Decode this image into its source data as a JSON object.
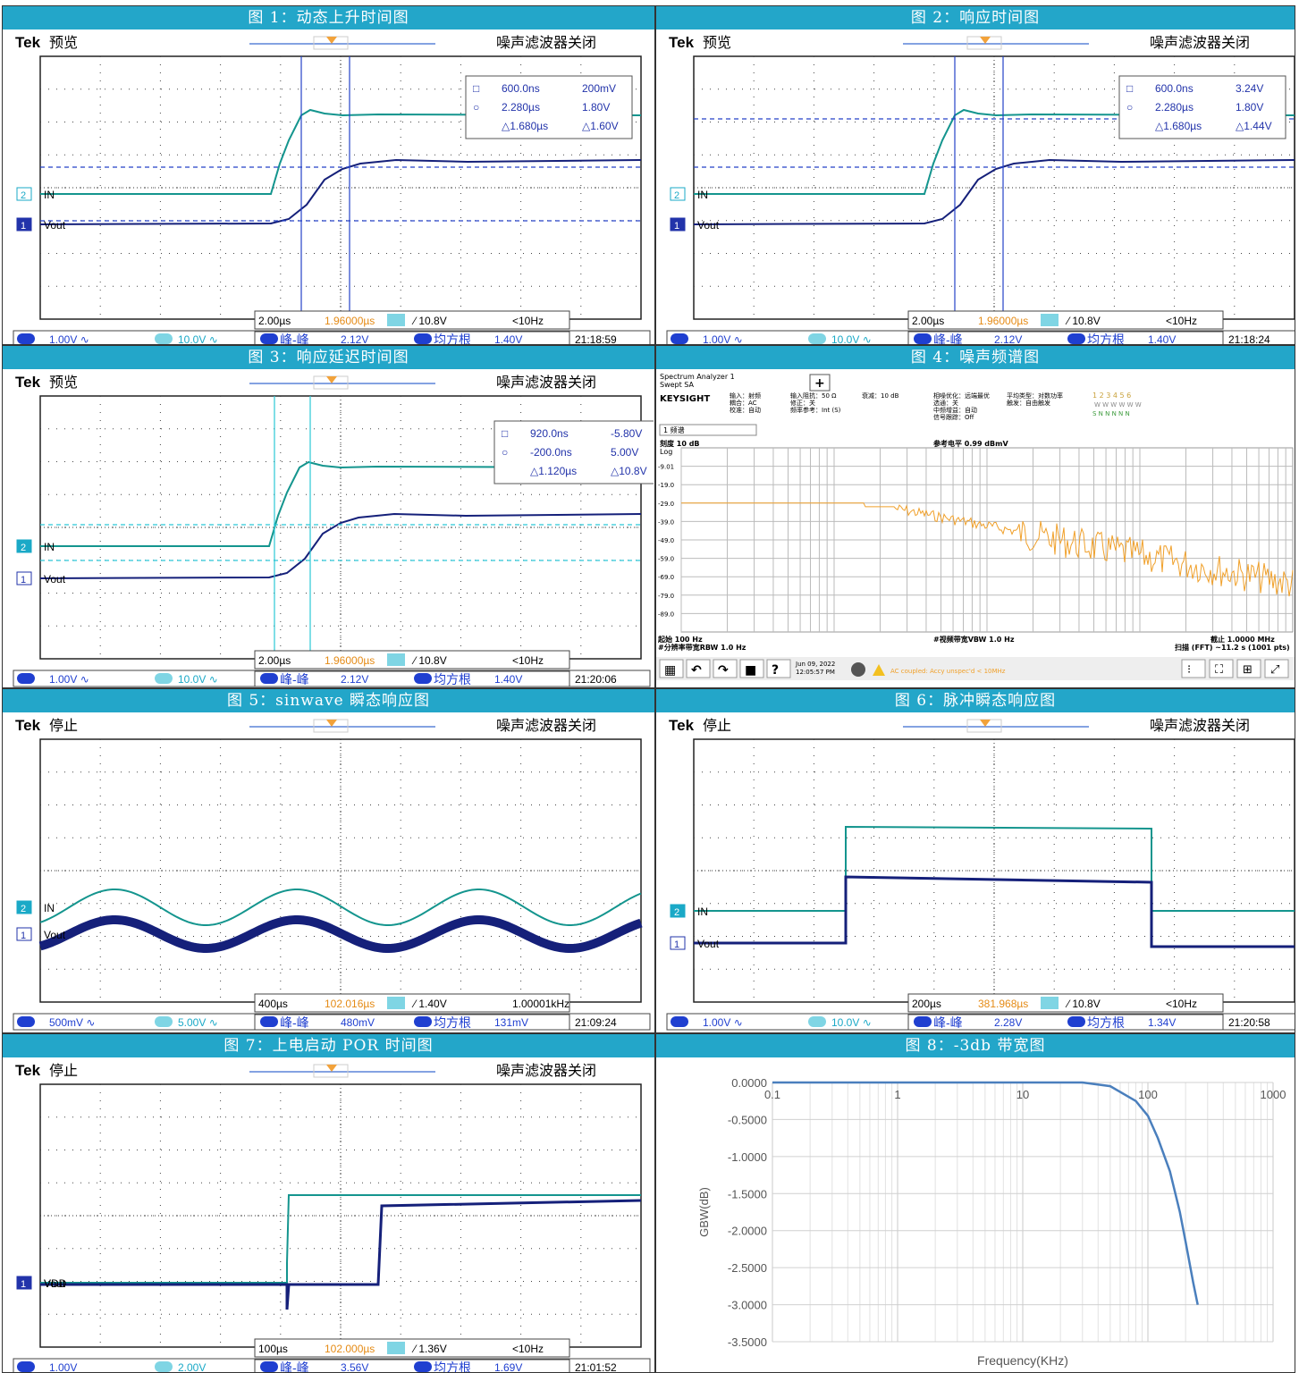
{
  "captions": [
    "图 1：动态上升时间图",
    "图 2：响应时间图",
    "图 3：响应延迟时间图",
    "图 4：噪声频谱图",
    "图 5：sinwave 瞬态响应图",
    "图 6：脉冲瞬态响应图",
    "图 7：上电启动 POR 时间图",
    "图 8：-3db 带宽图"
  ],
  "scopes": [
    {
      "brand": "Tek",
      "state": "预览",
      "filter": "噪声滤波器关闭",
      "ch2": "IN",
      "ch1": "Vout",
      "cursor": {
        "a": [
          "600.0ns",
          "200mV"
        ],
        "b": [
          "2.280µs",
          "1.80V"
        ],
        "d": [
          "△1.680µs",
          "△1.60V"
        ]
      },
      "status": {
        "tb": "2.00µs",
        "pos": "1.96000µs",
        "trig": "⁄ 10.8V",
        "freq": "<10Hz"
      },
      "bottom": {
        "ch1v": "1.00V ∿",
        "ch2v": "10.0V ∿",
        "m1": "峰-峰",
        "m1v": "2.12V",
        "m2": "均方根",
        "m2v": "1.40V",
        "time": "21:18:59"
      }
    },
    {
      "brand": "Tek",
      "state": "预览",
      "filter": "噪声滤波器关闭",
      "ch2": "IN",
      "ch1": "Vout",
      "cursor": {
        "a": [
          "600.0ns",
          "3.24V"
        ],
        "b": [
          "2.280µs",
          "1.80V"
        ],
        "d": [
          "△1.680µs",
          "△1.44V"
        ]
      },
      "status": {
        "tb": "2.00µs",
        "pos": "1.96000µs",
        "trig": "⁄ 10.8V",
        "freq": "<10Hz"
      },
      "bottom": {
        "ch1v": "1.00V ∿",
        "ch2v": "10.0V ∿",
        "m1": "峰-峰",
        "m1v": "2.12V",
        "m2": "均方根",
        "m2v": "1.40V",
        "time": "21:18:24"
      }
    },
    {
      "brand": "Tek",
      "state": "预览",
      "filter": "噪声滤波器关闭",
      "ch2": "IN",
      "ch1": "Vout",
      "cursor": {
        "a": [
          "920.0ns",
          "-5.80V"
        ],
        "b": [
          "-200.0ns",
          "5.00V"
        ],
        "d": [
          "△1.120µs",
          "△10.8V"
        ]
      },
      "status": {
        "tb": "2.00µs",
        "pos": "1.96000µs",
        "trig": "⁄ 10.8V",
        "freq": "<10Hz"
      },
      "bottom": {
        "ch1v": "1.00V ∿",
        "ch2v": "10.0V ∿",
        "m1": "峰-峰",
        "m1v": "2.12V",
        "m2": "均方根",
        "m2v": "1.40V",
        "time": "21:20:06"
      }
    },
    {
      "brand": "Tek",
      "state": "停止",
      "filter": "噪声滤波器关闭",
      "ch2": "IN",
      "ch1": "Vout",
      "status": {
        "tb": "400µs",
        "pos": "102.016µs",
        "trig": "⁄ 1.40V",
        "freq": "1.00001kHz"
      },
      "bottom": {
        "ch1v": "500mV ∿",
        "ch2v": "5.00V ∿",
        "m1": "峰-峰",
        "m1v": "480mV",
        "m2": "均方根",
        "m2v": "131mV",
        "time": "21:09:24"
      }
    },
    {
      "brand": "Tek",
      "state": "停止",
      "filter": "噪声滤波器关闭",
      "ch2": "IN",
      "ch1": "Vout",
      "status": {
        "tb": "200µs",
        "pos": "381.968µs",
        "trig": "⁄ 10.8V",
        "freq": "<10Hz"
      },
      "bottom": {
        "ch1v": "1.00V ∿",
        "ch2v": "10.0V ∿",
        "m1": "峰-峰",
        "m1v": "2.28V",
        "m2": "均方根",
        "m2v": "1.34V",
        "time": "21:20:58"
      }
    },
    {
      "brand": "Tek",
      "state": "停止",
      "filter": "噪声滤波器关闭",
      "ch2": "VDD",
      "ch1": "Vout",
      "status": {
        "tb": "100µs",
        "pos": "102.000µs",
        "trig": "⁄ 1.36V",
        "freq": "<10Hz"
      },
      "bottom": {
        "ch1v": "1.00V",
        "ch2v": "2.00V",
        "m1": "峰-峰",
        "m1v": "3.56V",
        "m2": "均方根",
        "m2v": "1.69V",
        "time": "21:01:52"
      }
    }
  ],
  "analyzer": {
    "title": "Spectrum Analyzer 1",
    "mode": "Swept SA",
    "brand": "KEYSIGHT",
    "p1": "输入：射频",
    "p2": "耦合：AC",
    "p3": "校准：自动",
    "p4": "输入阻抗：50 Ω",
    "p5": "修正：关",
    "p6": "频率参考：Int (S)",
    "p7": "衰减：10 dB",
    "p8": "相噪优化：远端最优",
    "p9": "选通：关",
    "p10": "中频增益：自动",
    "p11": "信号跟踪：Off",
    "p12": "平均类型：对数功率",
    "p13": "触发：自由触发",
    "traces": "1 2 3 4 5 6",
    "trace_mode": "W W W W W W",
    "trace_det": "S N N N N N",
    "dropdown": "1 频谱",
    "scale": "刻度 10 dB",
    "log": "Log",
    "ref": "参考电平 0.99 dBmV",
    "yticks": [
      "-9.01",
      "-19.0",
      "-29.0",
      "-39.0",
      "-49.0",
      "-59.0",
      "-69.0",
      "-79.0",
      "-89.0"
    ],
    "start": "起始 100 Hz",
    "rbw": "#分辨率带宽RBW 1.0 Hz",
    "vbw": "#视频带宽VBW 1.0 Hz",
    "stop": "截止 1.0000 MHz",
    "sweep": "扫描 (FFT) ~11.2 s (1001 pts)",
    "date": "Jun 09, 2022",
    "clock": "12:05:57 PM",
    "warn": "AC coupled: Accy unspec'd < 10MHz"
  },
  "chart_data": {
    "type": "line",
    "xlabel": "Frequency(KHz)",
    "ylabel": "GBW(dB)",
    "x_scale": "log",
    "xlim": [
      0.1,
      1000
    ],
    "ylim": [
      -3.5,
      0
    ],
    "xticks": [
      "0.1",
      "1",
      "10",
      "100",
      "1000"
    ],
    "yticks": [
      "0.0000",
      "-0.5000",
      "-1.0000",
      "-1.5000",
      "-2.0000",
      "-2.5000",
      "-3.0000",
      "-3.5000"
    ],
    "grid": true,
    "series": [
      {
        "color": "#4a7fbd",
        "x": [
          0.1,
          1,
          10,
          30,
          50,
          80,
          100,
          120,
          150,
          180,
          200,
          230,
          250
        ],
        "y": [
          0,
          0,
          0,
          0,
          -0.05,
          -0.25,
          -0.45,
          -0.75,
          -1.2,
          -1.75,
          -2.15,
          -2.7,
          -3.0
        ]
      }
    ]
  }
}
